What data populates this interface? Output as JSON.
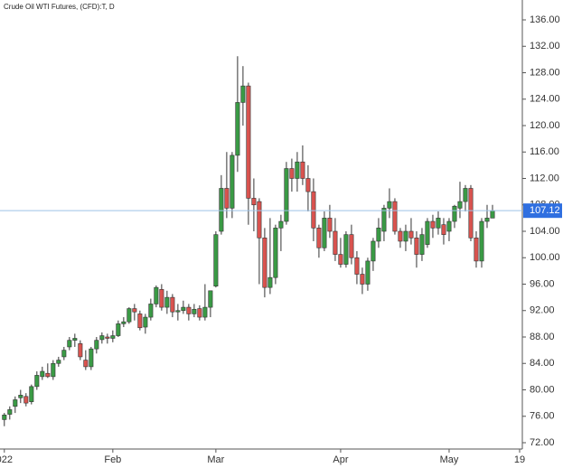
{
  "chart_data": {
    "type": "candlestick",
    "title": "Crude Oil WTI Futures, (CFD):T, D",
    "x": [
      0,
      1,
      2,
      3,
      4,
      5,
      6,
      7,
      8,
      9,
      10,
      11,
      12,
      13,
      14,
      15,
      16,
      17,
      18,
      19,
      20,
      21,
      22,
      23,
      24,
      25,
      26,
      27,
      28,
      29,
      30,
      31,
      32,
      33,
      34,
      35,
      36,
      37,
      38,
      39,
      40,
      41,
      42,
      43,
      44,
      45,
      46,
      47,
      48,
      49,
      50,
      51,
      52,
      53,
      54,
      55,
      56,
      57,
      58,
      59,
      60,
      61,
      62,
      63,
      64,
      65,
      66,
      67,
      68,
      69,
      70,
      71,
      72,
      73,
      74,
      75,
      76,
      77,
      78,
      79,
      80,
      81,
      82,
      83,
      84,
      85,
      86,
      87,
      88,
      89,
      90
    ],
    "open": [
      75.5,
      76.3,
      77.5,
      78.8,
      79.0,
      78.2,
      80.5,
      82.0,
      82.5,
      82.0,
      84.0,
      85.0,
      86.5,
      87.5,
      87.0,
      84.5,
      83.5,
      86.2,
      87.6,
      88.0,
      87.8,
      88.2,
      90.0,
      90.3,
      92.3,
      91.5,
      89.5,
      91.0,
      93.0,
      95.2,
      92.5,
      94.0,
      91.8,
      92.0,
      92.5,
      91.5,
      92.3,
      91.0,
      92.5,
      95.7,
      104.0,
      110.5,
      107.5,
      115.5,
      123.5,
      126.0,
      109.0,
      108.5,
      103.0,
      95.5,
      97.0,
      104.5,
      105.5,
      113.5,
      112.0,
      114.5,
      112.0,
      110.0,
      104.5,
      101.5,
      106.0,
      104.0,
      100.5,
      99.0,
      103.5,
      100.0,
      97.5,
      96.0,
      99.5,
      102.5,
      104.0,
      107.5,
      108.5,
      104.0,
      102.5,
      104.0,
      103.0,
      100.5,
      102.0,
      105.5,
      104.5,
      105.0,
      104.0,
      105.5,
      107.5,
      108.5,
      110.5,
      103.0,
      99.5,
      105.5,
      106.0
    ],
    "high": [
      76.5,
      77.5,
      79.0,
      80.0,
      79.5,
      80.8,
      82.8,
      83.5,
      84.0,
      84.5,
      85.0,
      86.5,
      88.0,
      88.5,
      87.5,
      86.0,
      86.5,
      88.0,
      88.7,
      88.5,
      89.0,
      90.5,
      91.0,
      92.5,
      93.0,
      92.0,
      91.5,
      93.8,
      95.8,
      96.0,
      95.0,
      94.5,
      93.0,
      93.5,
      93.0,
      93.0,
      92.8,
      96.0,
      95.0,
      104.0,
      112.5,
      116.0,
      116.0,
      130.5,
      129.0,
      126.5,
      112.0,
      109.0,
      104.5,
      106.0,
      105.0,
      106.5,
      114.5,
      115.0,
      116.0,
      117.0,
      114.0,
      112.0,
      105.0,
      107.0,
      108.0,
      106.0,
      103.0,
      104.0,
      105.0,
      101.0,
      98.5,
      100.0,
      103.0,
      106.0,
      108.0,
      110.5,
      109.0,
      104.5,
      105.0,
      106.0,
      104.0,
      104.5,
      106.0,
      106.5,
      107.0,
      106.0,
      106.0,
      108.0,
      111.5,
      111.0,
      111.0,
      104.0,
      106.0,
      108.0,
      108.0
    ],
    "low": [
      74.5,
      75.5,
      76.5,
      78.0,
      77.5,
      77.8,
      80.0,
      81.5,
      81.8,
      81.5,
      83.5,
      84.5,
      86.0,
      86.5,
      84.5,
      83.0,
      83.0,
      85.5,
      87.0,
      87.0,
      87.2,
      88.0,
      89.5,
      90.0,
      90.5,
      89.0,
      88.5,
      90.5,
      92.5,
      92.0,
      91.5,
      91.0,
      90.5,
      91.5,
      90.5,
      91.0,
      90.5,
      90.5,
      91.0,
      95.5,
      103.5,
      106.0,
      106.0,
      113.0,
      120.0,
      105.0,
      104.0,
      96.0,
      94.0,
      94.5,
      96.0,
      101.0,
      105.0,
      110.0,
      110.0,
      111.0,
      107.0,
      102.5,
      100.0,
      101.0,
      103.0,
      99.5,
      98.5,
      98.5,
      99.0,
      96.0,
      94.5,
      95.0,
      98.0,
      101.5,
      102.5,
      106.0,
      103.5,
      101.5,
      101.0,
      102.0,
      98.5,
      99.5,
      101.5,
      103.0,
      103.5,
      102.0,
      102.5,
      104.5,
      106.0,
      107.0,
      102.5,
      98.5,
      98.5,
      104.5,
      106.0
    ],
    "close": [
      76.2,
      77.0,
      78.5,
      79.2,
      78.0,
      80.5,
      82.2,
      82.8,
      82.0,
      84.0,
      84.5,
      86.0,
      87.5,
      87.8,
      85.0,
      83.5,
      86.2,
      87.5,
      88.2,
      87.8,
      88.2,
      90.0,
      90.3,
      92.3,
      91.8,
      89.4,
      91.0,
      93.0,
      95.5,
      92.5,
      94.0,
      91.8,
      92.0,
      92.5,
      91.5,
      92.2,
      91.0,
      92.5,
      95.0,
      103.5,
      110.5,
      107.5,
      115.5,
      123.5,
      126.0,
      109.0,
      108.0,
      103.0,
      95.5,
      97.0,
      104.5,
      105.5,
      113.5,
      112.0,
      114.5,
      112.0,
      110.0,
      104.5,
      101.5,
      106.0,
      104.0,
      100.5,
      99.0,
      103.5,
      100.0,
      97.5,
      96.0,
      99.5,
      102.5,
      104.5,
      107.5,
      108.5,
      104.0,
      102.5,
      104.0,
      103.0,
      100.5,
      103.5,
      105.5,
      104.5,
      106.0,
      103.5,
      105.5,
      107.8,
      108.5,
      110.5,
      103.0,
      99.5,
      105.5,
      106.0,
      107.12
    ],
    "up_color": "#3a9a45",
    "down_color": "#d9534f",
    "xlim": [
      -0.8,
      95.5
    ],
    "xticks": [
      {
        "value": 0,
        "label": "022"
      },
      {
        "value": 20,
        "label": "Feb"
      },
      {
        "value": 39,
        "label": "Mar"
      },
      {
        "value": 62,
        "label": "Apr"
      },
      {
        "value": 82,
        "label": "May"
      },
      {
        "value": 95,
        "label": "19"
      }
    ],
    "ylim": [
      72,
      136
    ],
    "yticks": [
      {
        "value": 72,
        "label": "72.00"
      },
      {
        "value": 76,
        "label": "76.00"
      },
      {
        "value": 80,
        "label": "80.00"
      },
      {
        "value": 84,
        "label": "84.00"
      },
      {
        "value": 88,
        "label": "88.00"
      },
      {
        "value": 92,
        "label": "92.00"
      },
      {
        "value": 96,
        "label": "96.00"
      },
      {
        "value": 100,
        "label": "100.00"
      },
      {
        "value": 104,
        "label": "104.00"
      },
      {
        "value": 108,
        "label": "108.00"
      },
      {
        "value": 112,
        "label": "112.00"
      },
      {
        "value": 116,
        "label": "116.00"
      },
      {
        "value": 120,
        "label": "120.00"
      },
      {
        "value": 124,
        "label": "124.00"
      },
      {
        "value": 128,
        "label": "128.00"
      },
      {
        "value": 132,
        "label": "132.00"
      },
      {
        "value": 136,
        "label": "136.00"
      }
    ],
    "last_price": 107.12,
    "last_price_color": "#2f6fe0"
  }
}
